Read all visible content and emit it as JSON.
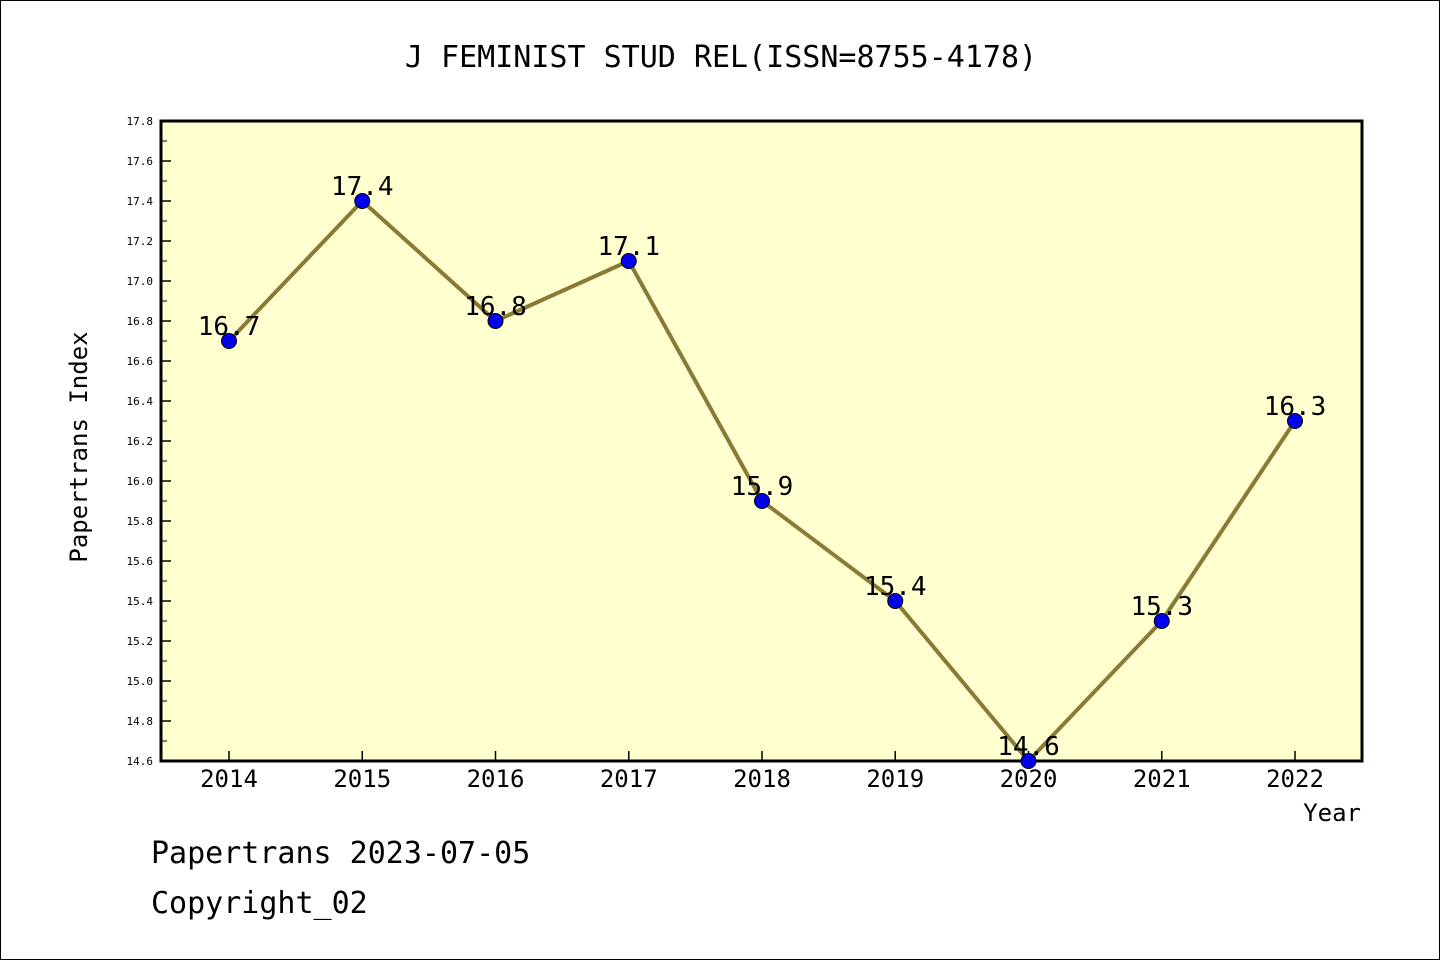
{
  "chart_data": {
    "type": "line",
    "title": "J FEMINIST STUD REL(ISSN=8755-4178)",
    "xlabel": "Year",
    "ylabel": "Papertrans Index",
    "categories": [
      "2014",
      "2015",
      "2016",
      "2017",
      "2018",
      "2019",
      "2020",
      "2021",
      "2022"
    ],
    "series": [
      {
        "values": [
          16.7,
          17.4,
          16.8,
          17.1,
          15.9,
          15.4,
          14.6,
          15.3,
          16.3
        ]
      }
    ],
    "data_labels": [
      "16.7",
      "17.4",
      "16.8",
      "17.1",
      "15.9",
      "15.4",
      "14.6",
      "15.3",
      "16.3"
    ],
    "ylim": [
      14.6,
      17.8
    ],
    "yticks": [
      "14.6",
      "14.8",
      "15.0",
      "15.2",
      "15.4",
      "15.6",
      "15.8",
      "16.0",
      "16.2",
      "16.4",
      "16.6",
      "16.8",
      "17.0",
      "17.2",
      "17.4",
      "17.6",
      "17.8"
    ],
    "grid": false,
    "legend": "none",
    "colors": {
      "plot_background": "#ffffd0",
      "line": "#8b7a36",
      "marker": "#0000ee"
    }
  },
  "footer": {
    "line1": "Papertrans 2023-07-05",
    "line2": "Copyright_02"
  }
}
